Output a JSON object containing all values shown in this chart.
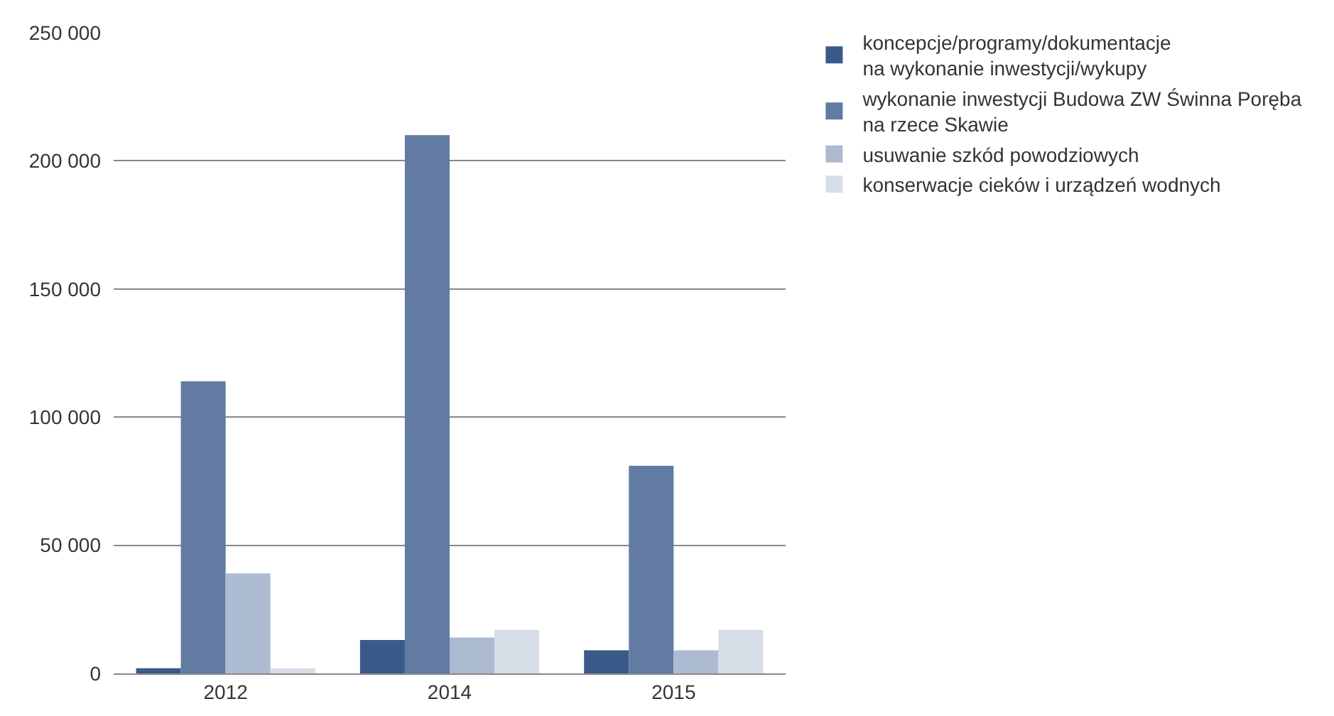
{
  "chart_data": {
    "type": "bar",
    "categories": [
      "2012",
      "2014",
      "2015"
    ],
    "series": [
      {
        "name": "koncepcje/programy/dokumentacje\nna wykonanie inwestycji/wykupy",
        "color": "#3a5a8a",
        "values": [
          2000,
          13000,
          9000
        ]
      },
      {
        "name": "wykonanie inwestycji Budowa ZW Świnna Poręba\nna rzece Skawie",
        "color": "#627ba2",
        "values": [
          114000,
          210000,
          81000
        ]
      },
      {
        "name": "usuwanie szkód powodziowych",
        "color": "#adbbd0",
        "values": [
          39000,
          14000,
          9000
        ]
      },
      {
        "name": "konserwacje cieków i urządzeń wodnych",
        "color": "#d7dde7",
        "values": [
          2000,
          17000,
          17000
        ]
      }
    ],
    "ylim": [
      0,
      250000
    ],
    "yticks": [
      {
        "value": 0,
        "label": "0"
      },
      {
        "value": 50000,
        "label": "50 000"
      },
      {
        "value": 100000,
        "label": "100 000"
      },
      {
        "value": 150000,
        "label": "150 000"
      },
      {
        "value": 200000,
        "label": "200 000"
      },
      {
        "value": 250000,
        "label": "250 000"
      }
    ],
    "grid": "y",
    "legend": "top right"
  }
}
